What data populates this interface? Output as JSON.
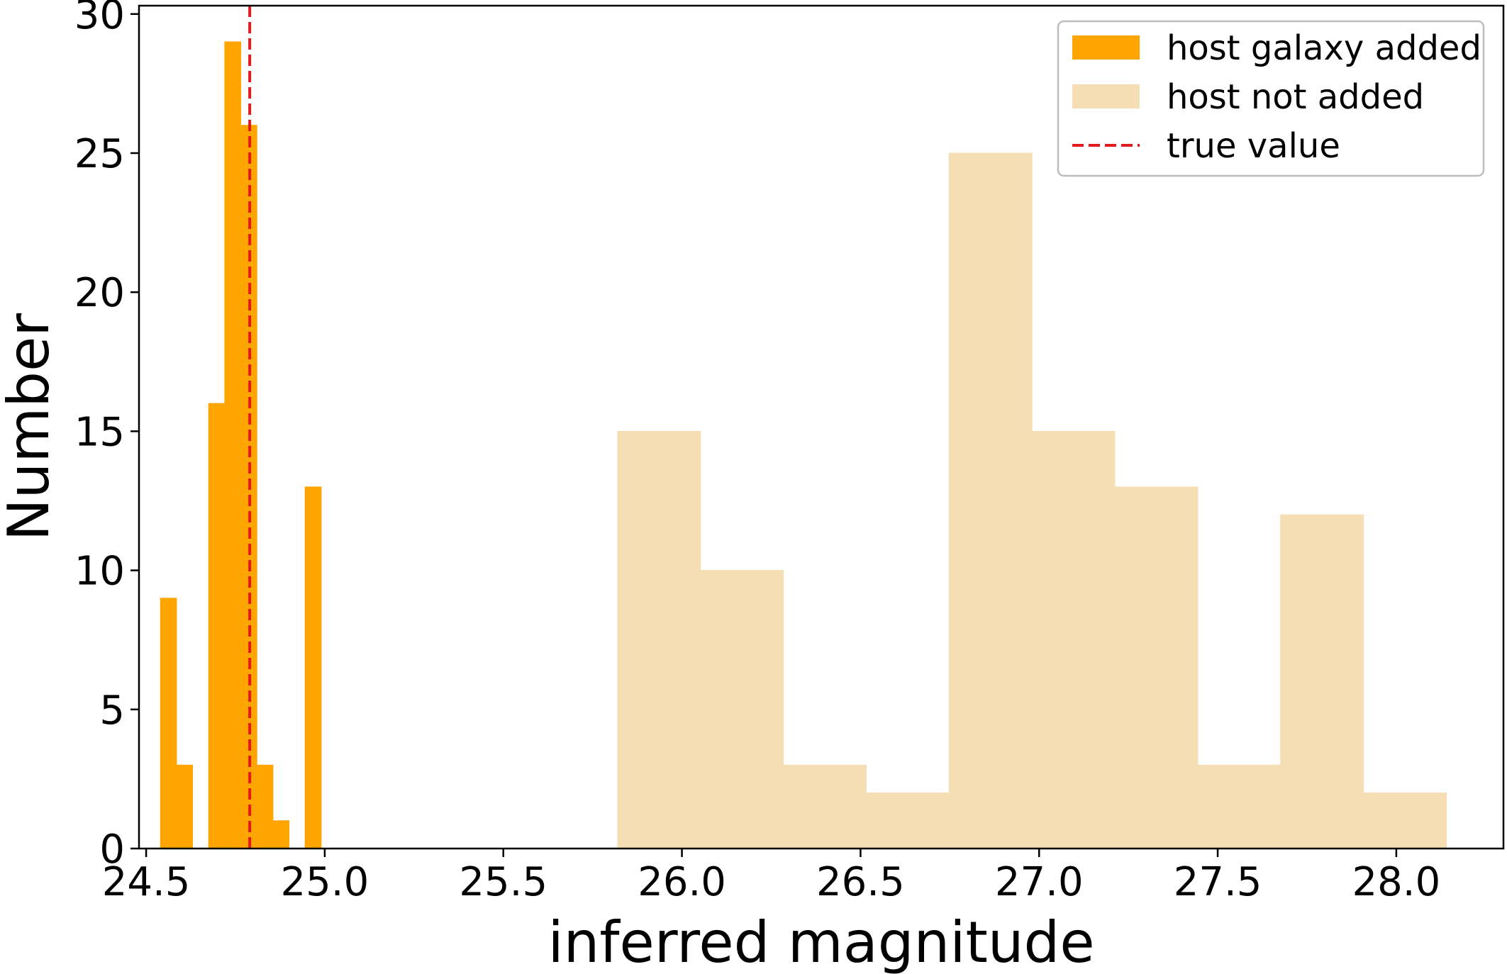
{
  "chart_data": {
    "type": "bar",
    "xlabel": "inferred magnitude",
    "ylabel": "Number",
    "xlim": [
      24.48,
      28.3
    ],
    "ylim": [
      0,
      30.3
    ],
    "x_ticks": [
      24.5,
      25.0,
      25.5,
      26.0,
      26.5,
      27.0,
      27.5,
      28.0
    ],
    "x_tick_labels": [
      "24.5",
      "25.0",
      "25.5",
      "26.0",
      "26.5",
      "27.0",
      "27.5",
      "28.0"
    ],
    "y_ticks": [
      0,
      5,
      10,
      15,
      20,
      25,
      30
    ],
    "y_tick_labels": [
      "0",
      "5",
      "10",
      "15",
      "20",
      "25",
      "30"
    ],
    "grid": false,
    "legend_position": "top-right",
    "series": [
      {
        "name": "host galaxy added",
        "kind": "histogram",
        "color": "#ffa500",
        "bins": [
          {
            "start": 24.54,
            "end": 24.585,
            "count": 9
          },
          {
            "start": 24.585,
            "end": 24.63,
            "count": 3
          },
          {
            "start": 24.63,
            "end": 24.675,
            "count": 0
          },
          {
            "start": 24.675,
            "end": 24.72,
            "count": 16
          },
          {
            "start": 24.72,
            "end": 24.765,
            "count": 29
          },
          {
            "start": 24.765,
            "end": 24.81,
            "count": 26
          },
          {
            "start": 24.81,
            "end": 24.855,
            "count": 3
          },
          {
            "start": 24.855,
            "end": 24.9,
            "count": 1
          },
          {
            "start": 24.9,
            "end": 24.945,
            "count": 0
          },
          {
            "start": 24.945,
            "end": 24.99,
            "count": 13
          }
        ]
      },
      {
        "name": "host not added",
        "kind": "histogram",
        "color": "#f5deb3",
        "bins": [
          {
            "start": 25.82,
            "end": 26.052,
            "count": 15
          },
          {
            "start": 26.052,
            "end": 26.284,
            "count": 10
          },
          {
            "start": 26.284,
            "end": 26.516,
            "count": 3
          },
          {
            "start": 26.516,
            "end": 26.748,
            "count": 2
          },
          {
            "start": 26.748,
            "end": 26.98,
            "count": 25
          },
          {
            "start": 26.98,
            "end": 27.212,
            "count": 15
          },
          {
            "start": 27.212,
            "end": 27.444,
            "count": 13
          },
          {
            "start": 27.444,
            "end": 27.676,
            "count": 3
          },
          {
            "start": 27.676,
            "end": 27.908,
            "count": 12
          },
          {
            "start": 27.908,
            "end": 28.14,
            "count": 2
          }
        ]
      },
      {
        "name": "true value",
        "kind": "vline",
        "color": "#e31a1c",
        "x": 24.79,
        "style": "dashed"
      }
    ]
  }
}
